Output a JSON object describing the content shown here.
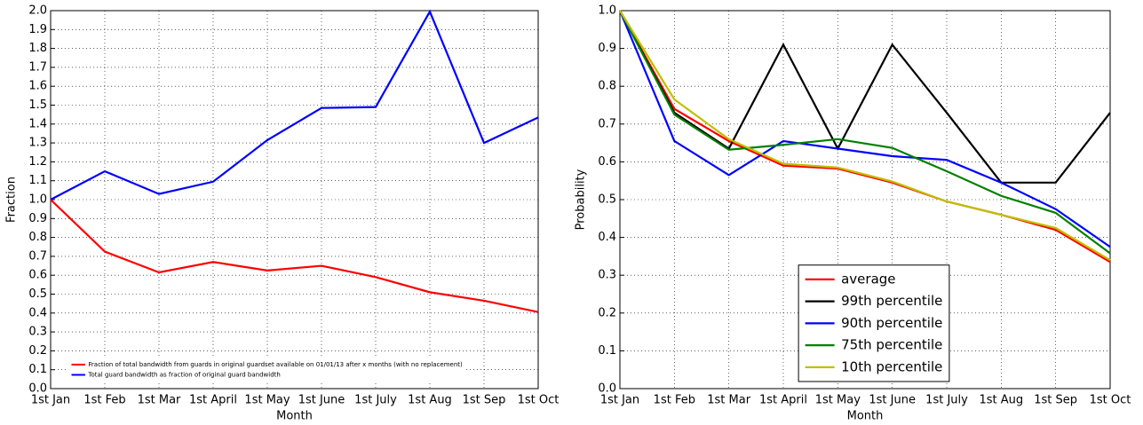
{
  "chart_data": [
    {
      "type": "line",
      "xlabel": "Month",
      "ylabel": "Fraction",
      "categories": [
        "1st Jan",
        "1st Feb",
        "1st Mar",
        "1st April",
        "1st May",
        "1st June",
        "1st July",
        "1st Aug",
        "1st Sep",
        "1st Oct"
      ],
      "ylim": [
        0,
        2
      ],
      "yticks": [
        {
          "value": 0,
          "label": "0.0"
        },
        0.1,
        0.2,
        0.3,
        0.4,
        0.5,
        0.6,
        0.7,
        0.8,
        0.9,
        {
          "value": 1,
          "label": "1.0"
        },
        1.1,
        1.2,
        1.3,
        1.4,
        1.5,
        1.6,
        1.7,
        1.8,
        1.9,
        {
          "value": 2,
          "label": "2.0"
        }
      ],
      "grid": true,
      "legend": "lower left",
      "series": [
        {
          "name": "Fraction of total bandwidth from guards in original guardset available on 01/01/13 after x months (with no replacement)",
          "color": "#ff0000",
          "values": [
            1.0,
            0.725,
            0.615,
            0.67,
            0.625,
            0.65,
            0.59,
            0.51,
            0.465,
            0.405
          ]
        },
        {
          "name": "Total guard bandwidth as fraction of original guard bandwidth",
          "color": "#0000ff",
          "values": [
            1.0,
            1.15,
            1.03,
            1.095,
            1.315,
            1.485,
            1.49,
            1.995,
            1.3,
            1.435
          ]
        }
      ]
    },
    {
      "type": "line",
      "xlabel": "Month",
      "ylabel": "Probability",
      "categories": [
        "1st Jan",
        "1st Feb",
        "1st Mar",
        "1st April",
        "1st May",
        "1st June",
        "1st July",
        "1st Aug",
        "1st Sep",
        "1st Oct"
      ],
      "ylim": [
        0,
        1
      ],
      "yticks": [
        {
          "value": 0,
          "label": "0.0"
        },
        0.1,
        0.2,
        0.3,
        0.4,
        0.5,
        0.6,
        0.7,
        0.8,
        0.9,
        {
          "value": 1,
          "label": "1.0"
        }
      ],
      "grid": true,
      "legend": "lower center",
      "series": [
        {
          "name": "average",
          "color": "#ff0000",
          "values": [
            1.0,
            0.74,
            0.655,
            0.59,
            0.582,
            0.545,
            0.495,
            0.46,
            0.42,
            0.335
          ]
        },
        {
          "name": "99th percentile",
          "color": "#000000",
          "values": [
            1.0,
            0.73,
            0.635,
            0.91,
            0.635,
            0.91,
            0.73,
            0.545,
            0.545,
            0.73
          ]
        },
        {
          "name": "90th percentile",
          "color": "#0000ff",
          "values": [
            1.0,
            0.655,
            0.565,
            0.655,
            0.635,
            0.615,
            0.605,
            0.545,
            0.475,
            0.375
          ]
        },
        {
          "name": "75th percentile",
          "color": "#008000",
          "values": [
            1.0,
            0.725,
            0.632,
            0.645,
            0.66,
            0.637,
            0.575,
            0.51,
            0.465,
            0.358
          ]
        },
        {
          "name": "10th percentile",
          "color": "#bfbf00",
          "values": [
            1.0,
            0.765,
            0.66,
            0.595,
            0.585,
            0.548,
            0.495,
            0.46,
            0.425,
            0.34
          ]
        }
      ]
    }
  ]
}
